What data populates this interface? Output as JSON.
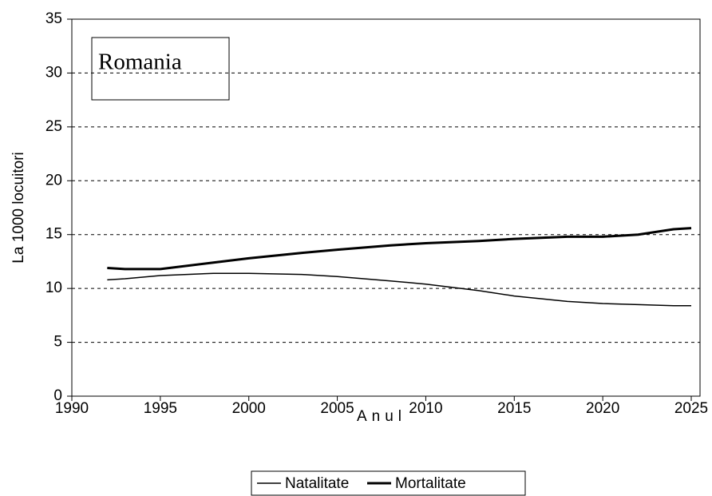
{
  "chart_data": {
    "type": "line",
    "title": "Romania",
    "x_label": "Anul",
    "y_label": "La 1000 locuitori",
    "x": [
      1992,
      1993,
      1995,
      1998,
      2000,
      2003,
      2005,
      2008,
      2010,
      2013,
      2015,
      2018,
      2020,
      2022,
      2024,
      2025
    ],
    "series": [
      {
        "name": "Natalitate",
        "color": "#000000",
        "values": [
          10.8,
          10.9,
          11.2,
          11.4,
          11.4,
          11.3,
          11.1,
          10.7,
          10.4,
          9.8,
          9.3,
          8.8,
          8.6,
          8.5,
          8.4,
          8.4
        ]
      },
      {
        "name": "Mortalitate",
        "color": "#000000",
        "values": [
          11.9,
          11.8,
          11.8,
          12.4,
          12.8,
          13.3,
          13.6,
          14.0,
          14.2,
          14.4,
          14.6,
          14.8,
          14.8,
          15.0,
          15.5,
          15.6
        ]
      }
    ],
    "xlim": [
      1990,
      2025
    ],
    "xticks": [
      1990,
      1995,
      2000,
      2005,
      2010,
      2015,
      2020,
      2025
    ],
    "ylim": [
      0,
      35
    ],
    "yticks": [
      0,
      5,
      10,
      15,
      20,
      25,
      30,
      35
    ],
    "grid": true,
    "legend": "bottom"
  }
}
